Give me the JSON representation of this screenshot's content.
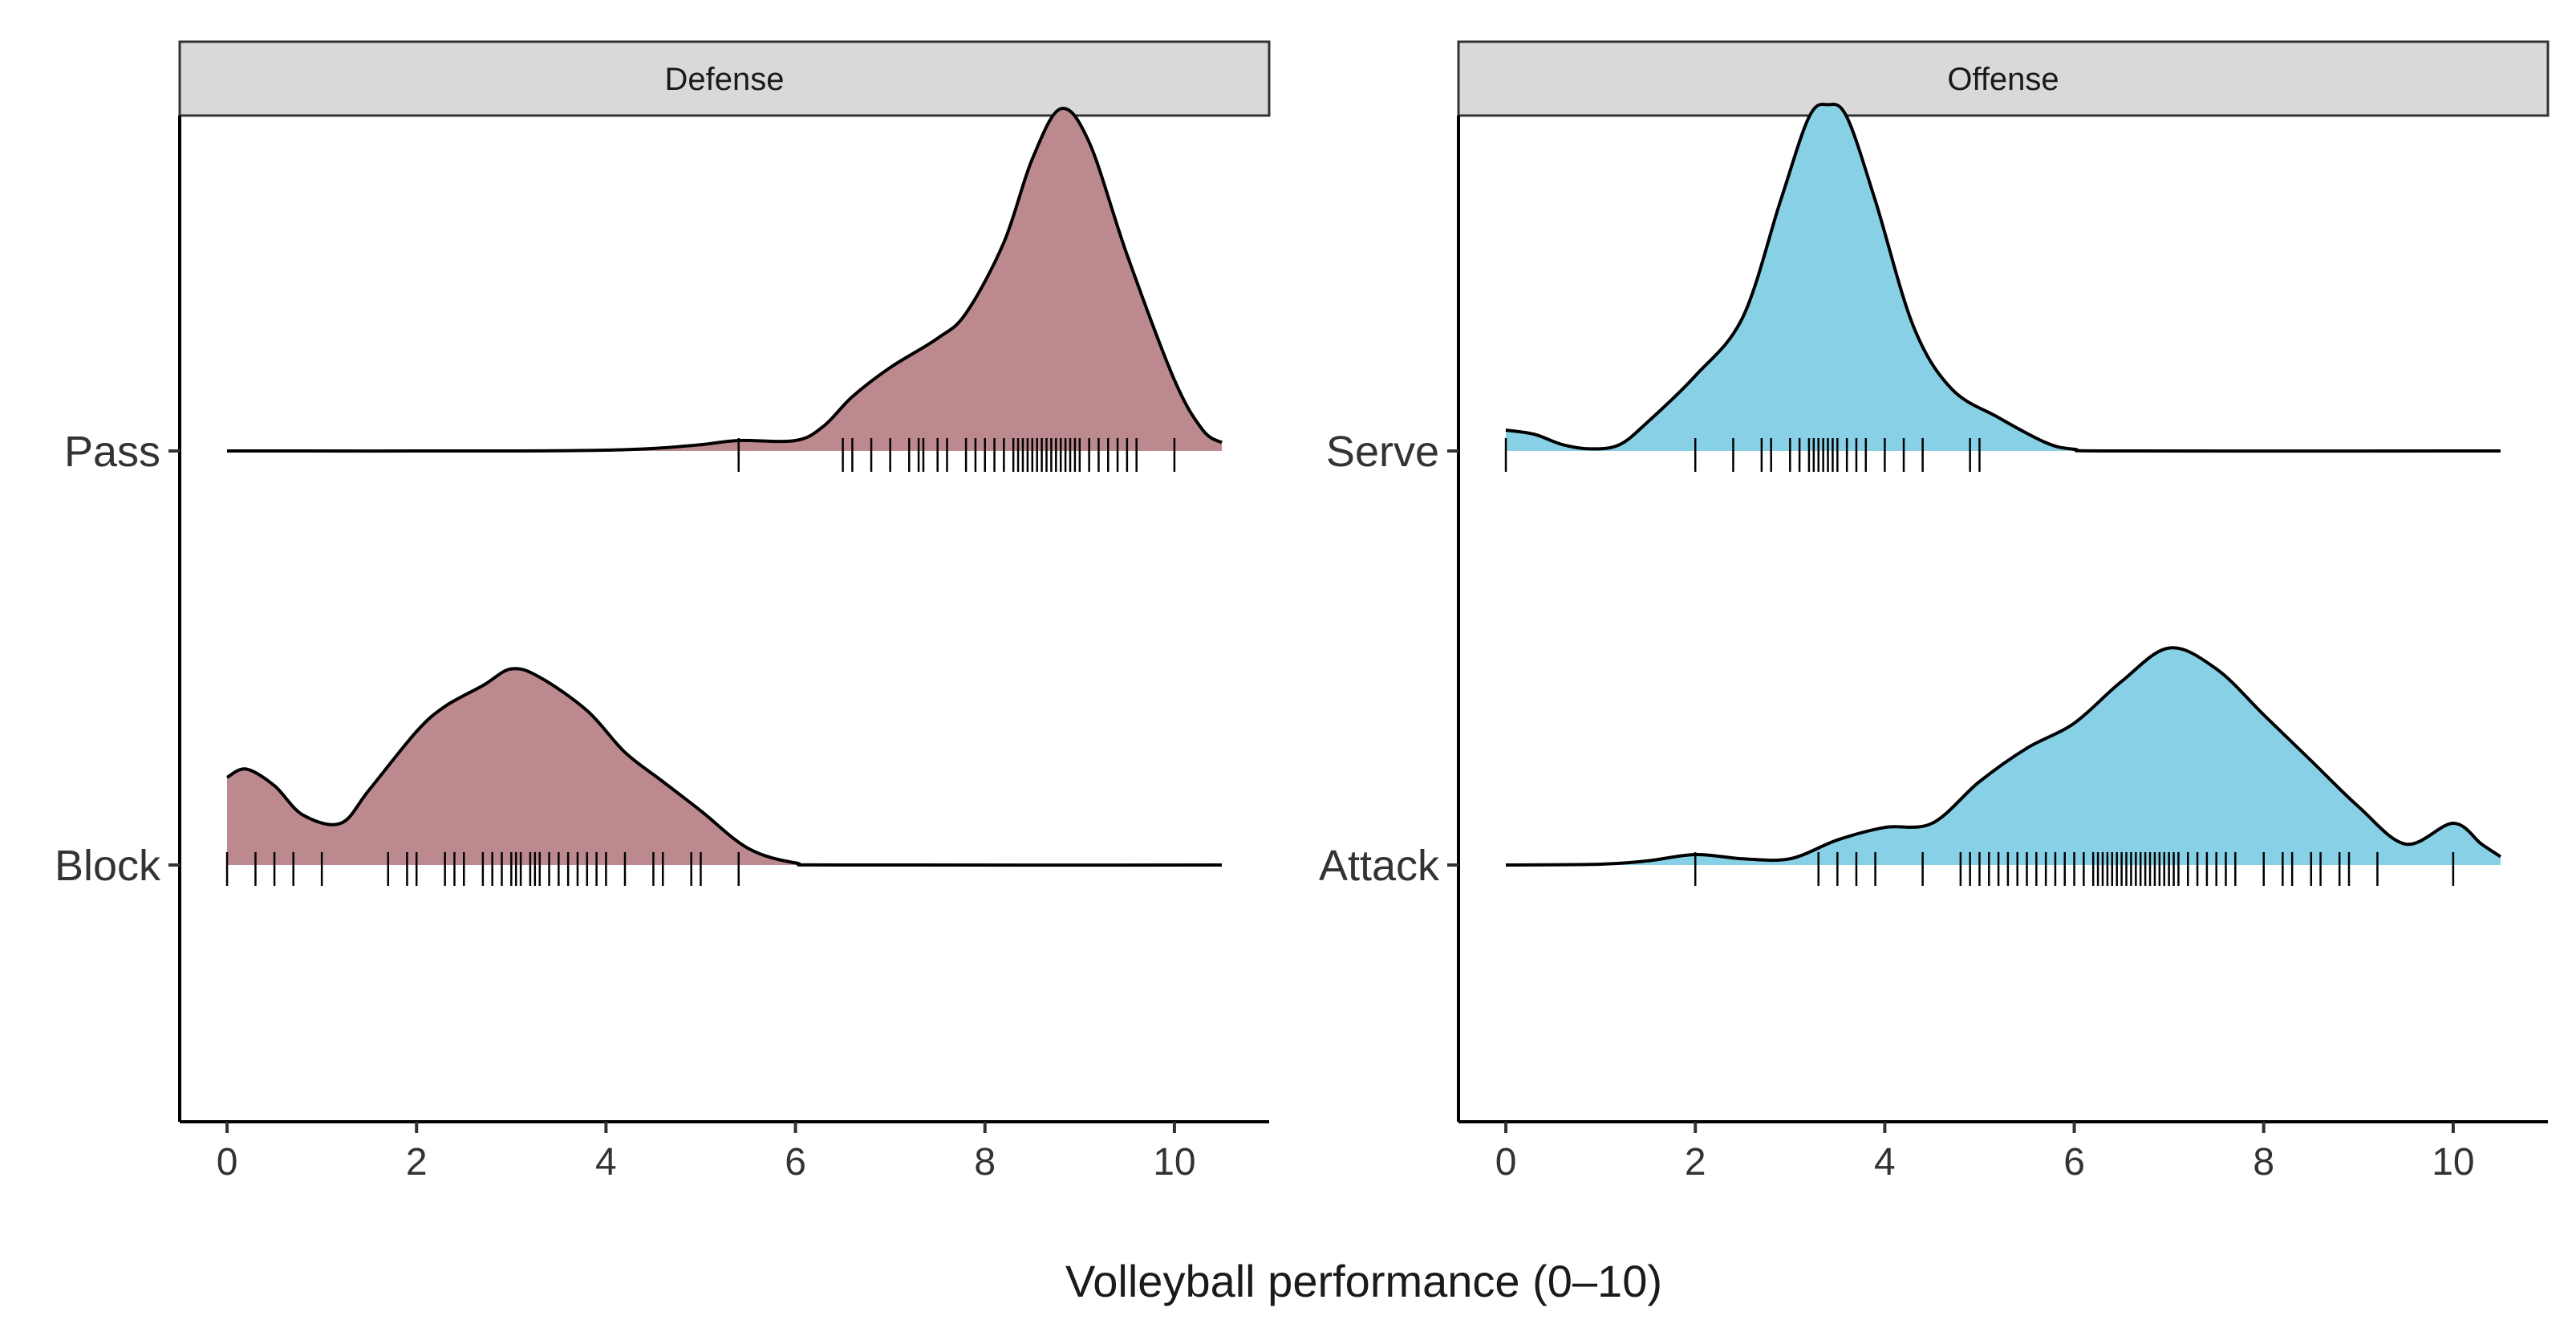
{
  "chart_data": {
    "type": "ridgeline",
    "xlabel": "Volleyball performance (0–10)",
    "xlim": [
      -0.5,
      11.0
    ],
    "x_ticks": [
      0,
      2,
      4,
      6,
      8,
      10
    ],
    "x_tick_labels": [
      "0",
      "2",
      "4",
      "6",
      "8",
      "10"
    ],
    "panels": [
      {
        "title": "Defense",
        "color": "#bc8a8e",
        "categories": [
          "Pass",
          "Block"
        ],
        "series": [
          {
            "name": "Pass",
            "density_x": [
              0,
              3,
              4,
              4.5,
              5,
              5.4,
              6,
              6.3,
              6.6,
              7,
              7.5,
              7.8,
              8.2,
              8.5,
              8.8,
              9.1,
              9.5,
              10,
              10.3,
              10.5
            ],
            "density_y": [
              0,
              0,
              0.002,
              0.006,
              0.015,
              0.025,
              0.025,
              0.06,
              0.13,
              0.2,
              0.27,
              0.33,
              0.5,
              0.7,
              0.82,
              0.74,
              0.47,
              0.17,
              0.05,
              0.02
            ],
            "rug": [
              5.4,
              6.5,
              6.6,
              6.8,
              7.0,
              7.2,
              7.3,
              7.35,
              7.5,
              7.6,
              7.8,
              7.9,
              8.0,
              8.1,
              8.2,
              8.3,
              8.35,
              8.4,
              8.45,
              8.5,
              8.55,
              8.6,
              8.65,
              8.7,
              8.75,
              8.8,
              8.85,
              8.9,
              8.95,
              9.0,
              9.1,
              9.2,
              9.3,
              9.4,
              9.5,
              9.6,
              10.0
            ]
          },
          {
            "name": "Block",
            "density_x": [
              0,
              0.2,
              0.5,
              0.8,
              1.2,
              1.5,
              2.0,
              2.3,
              2.7,
              3.0,
              3.3,
              3.8,
              4.2,
              4.6,
              5.0,
              5.5,
              6.0,
              6.5,
              10.5
            ],
            "density_y": [
              0.21,
              0.23,
              0.19,
              0.12,
              0.1,
              0.18,
              0.32,
              0.38,
              0.43,
              0.47,
              0.45,
              0.37,
              0.27,
              0.2,
              0.13,
              0.04,
              0.005,
              0,
              0
            ],
            "rug": [
              0,
              0.3,
              0.5,
              0.7,
              1.0,
              1.7,
              1.9,
              2.0,
              2.3,
              2.4,
              2.5,
              2.7,
              2.8,
              2.9,
              3.0,
              3.05,
              3.1,
              3.2,
              3.25,
              3.3,
              3.4,
              3.5,
              3.6,
              3.7,
              3.8,
              3.9,
              4.0,
              4.2,
              4.5,
              4.6,
              4.9,
              5.0,
              5.4
            ]
          }
        ]
      },
      {
        "title": "Offense",
        "color": "#88d0e6",
        "categories": [
          "Serve",
          "Attack"
        ],
        "series": [
          {
            "name": "Serve",
            "density_x": [
              0,
              0.3,
              0.6,
              0.9,
              1.2,
              1.5,
              2.0,
              2.5,
              2.9,
              3.2,
              3.4,
              3.6,
              3.9,
              4.3,
              4.7,
              5.2,
              5.7,
              6.0,
              6.5,
              10.5
            ],
            "density_y": [
              0.05,
              0.04,
              0.015,
              0.005,
              0.015,
              0.07,
              0.18,
              0.32,
              0.6,
              0.8,
              0.83,
              0.8,
              0.6,
              0.3,
              0.15,
              0.08,
              0.02,
              0.004,
              0,
              0
            ],
            "rug": [
              0,
              2.0,
              2.4,
              2.7,
              2.8,
              3.0,
              3.1,
              3.2,
              3.25,
              3.3,
              3.35,
              3.4,
              3.45,
              3.5,
              3.6,
              3.7,
              3.8,
              4.0,
              4.2,
              4.4,
              4.9,
              5.0
            ]
          },
          {
            "name": "Attack",
            "density_x": [
              0,
              1.0,
              1.5,
              2.0,
              2.5,
              3.0,
              3.5,
              4.0,
              4.5,
              5.0,
              5.5,
              6.0,
              6.5,
              7.0,
              7.5,
              8.0,
              8.5,
              9.0,
              9.5,
              10.0,
              10.3,
              10.5
            ],
            "density_y": [
              0,
              0.002,
              0.01,
              0.025,
              0.015,
              0.015,
              0.06,
              0.09,
              0.1,
              0.2,
              0.28,
              0.34,
              0.44,
              0.52,
              0.47,
              0.36,
              0.25,
              0.14,
              0.05,
              0.1,
              0.05,
              0.02
            ],
            "rug": [
              2.0,
              3.3,
              3.5,
              3.7,
              3.9,
              4.4,
              4.8,
              4.9,
              5.0,
              5.1,
              5.2,
              5.3,
              5.4,
              5.5,
              5.6,
              5.7,
              5.8,
              5.9,
              6.0,
              6.1,
              6.2,
              6.25,
              6.3,
              6.35,
              6.4,
              6.45,
              6.5,
              6.55,
              6.6,
              6.65,
              6.7,
              6.75,
              6.8,
              6.85,
              6.9,
              6.95,
              7.0,
              7.05,
              7.1,
              7.2,
              7.3,
              7.4,
              7.5,
              7.6,
              7.7,
              8.0,
              8.2,
              8.3,
              8.5,
              8.6,
              8.8,
              8.9,
              9.2,
              10.0
            ]
          }
        ]
      }
    ]
  }
}
